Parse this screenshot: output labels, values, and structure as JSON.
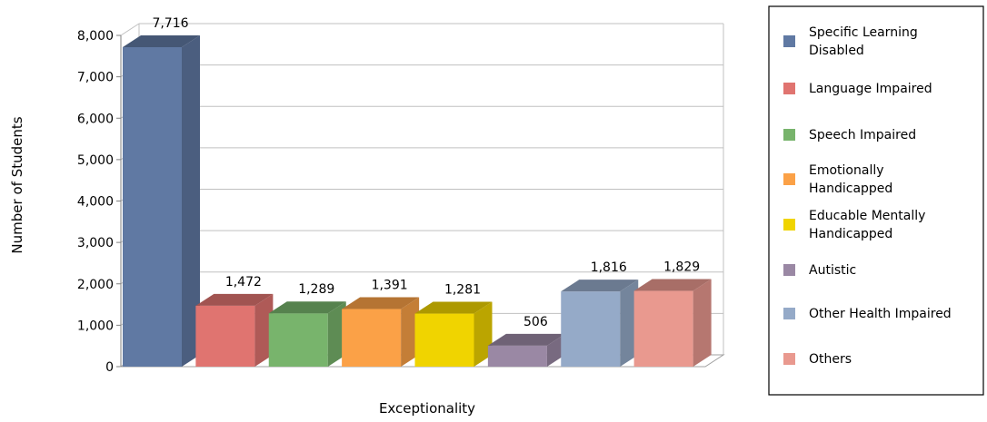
{
  "chart_data": {
    "type": "bar",
    "title": "",
    "xlabel": "Exceptionality",
    "ylabel": "Number of Students",
    "ylim": [
      0,
      8000
    ],
    "yticks": [
      "8,000",
      "7,000",
      "6,000",
      "5,000",
      "4,000",
      "3,000",
      "2,000",
      "1,000",
      "0"
    ],
    "ytick_values": [
      8000,
      7000,
      6000,
      5000,
      4000,
      3000,
      2000,
      1000,
      0
    ],
    "grid": true,
    "legend_position": "right",
    "categories": [
      "Specific Learning Disabled",
      "Language Impaired",
      "Speech Impaired",
      "Emotionally Handicapped",
      "Educable Mentally Handicapped",
      "Autistic",
      "Other Health Impaired",
      "Others"
    ],
    "legend_lines": [
      [
        "Specific Learning",
        "Disabled"
      ],
      [
        "Language Impaired"
      ],
      [
        "Speech Impaired"
      ],
      [
        "Emotionally",
        "Handicapped"
      ],
      [
        "Educable Mentally",
        "Handicapped"
      ],
      [
        "Autistic"
      ],
      [
        "Other Health Impaired"
      ],
      [
        "Others"
      ]
    ],
    "values": [
      7716,
      1472,
      1289,
      1391,
      1281,
      506,
      1816,
      1829
    ],
    "value_labels": [
      "7,716",
      "1,472",
      "1,289",
      "1,391",
      "1,281",
      "506",
      "1,816",
      "1,829"
    ],
    "colors": [
      "#6079A3",
      "#E07470",
      "#78B46C",
      "#FBA147",
      "#F0D400",
      "#9A88A4",
      "#95AAC8",
      "#E9998F"
    ]
  }
}
